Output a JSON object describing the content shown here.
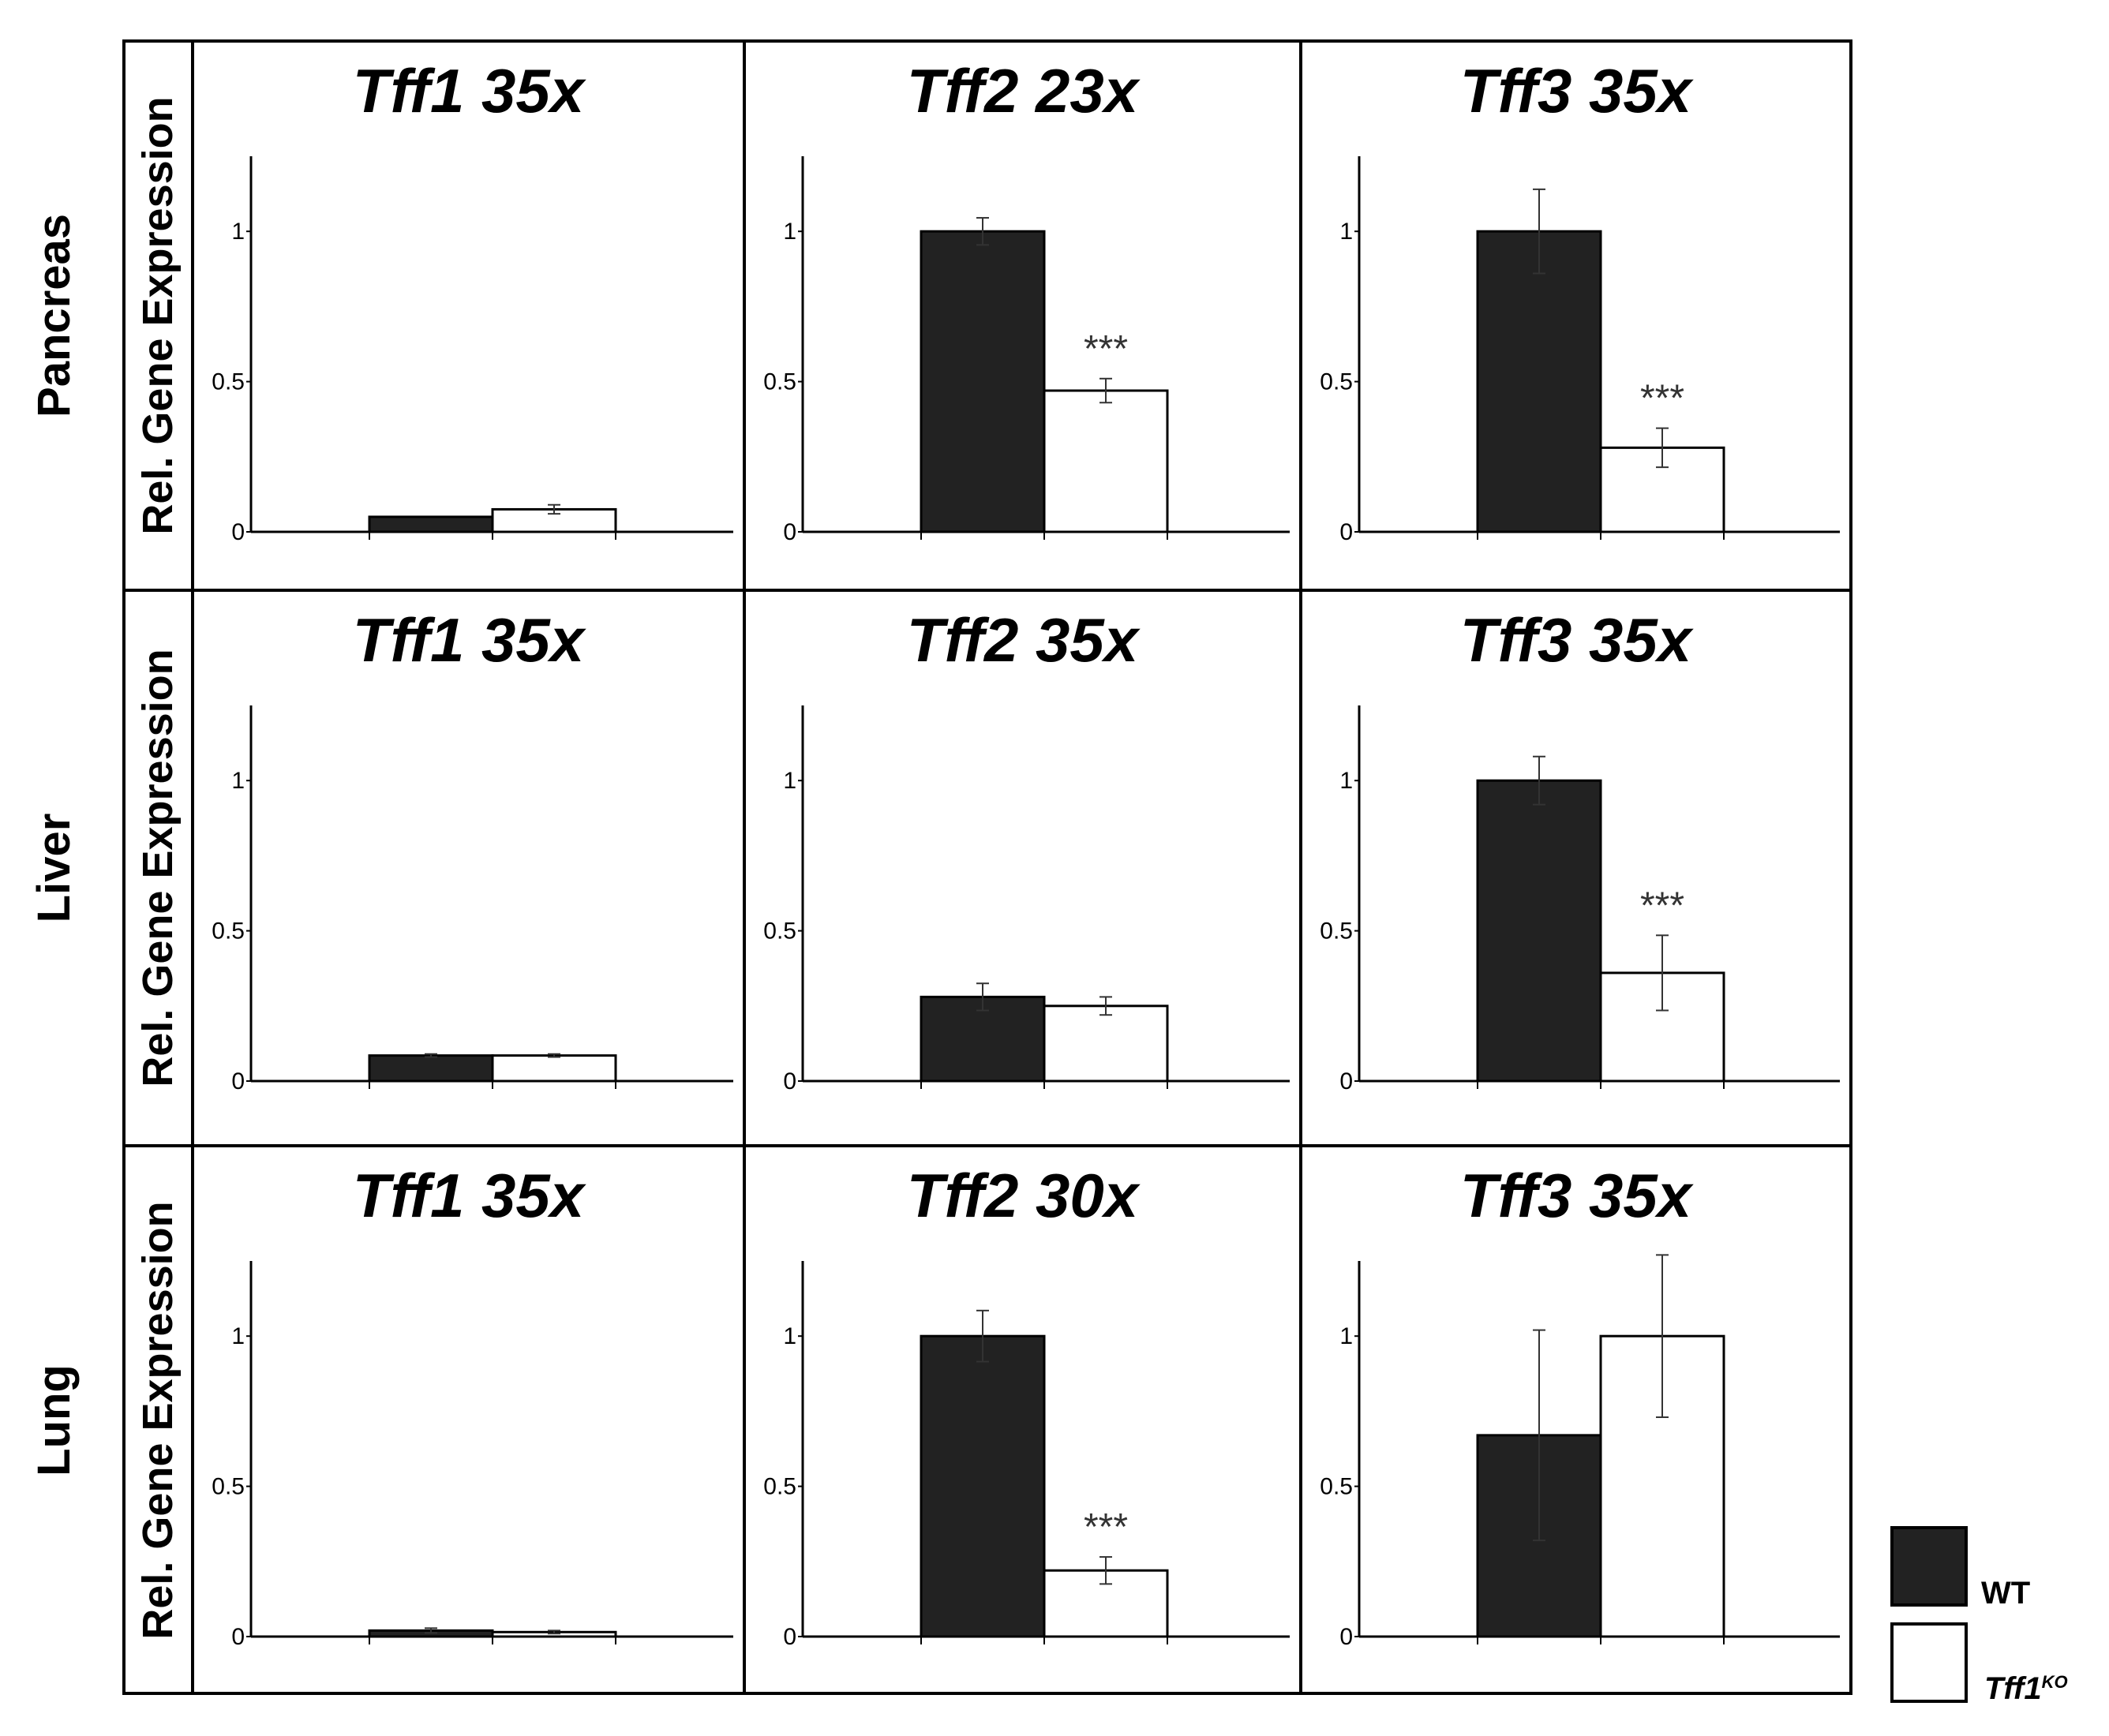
{
  "colors": {
    "wt": "#222222",
    "ko": "#ffffff",
    "axis": "#000000",
    "errorbar": "#333333"
  },
  "rows": [
    {
      "label": "Pancreas"
    },
    {
      "label": "Liver"
    },
    {
      "label": "Lung"
    }
  ],
  "y_axis_label": "Rel. Gene Expression",
  "legend": {
    "wt_label": "WT",
    "ko_label": "Tff1",
    "ko_superscript": "KO"
  },
  "chart_data": [
    {
      "type": "bar",
      "row": "Pancreas",
      "title": "Tff1 35x",
      "categories": [
        "WT",
        "Tff1KO"
      ],
      "series": [
        {
          "name": "WT",
          "value": 0.05,
          "error": 0.0
        },
        {
          "name": "Tff1KO",
          "value": 0.075,
          "error": 0.015
        }
      ],
      "significance": "",
      "ylim": [
        0,
        1.25
      ],
      "yticks": [
        "0",
        "0.5",
        "1"
      ]
    },
    {
      "type": "bar",
      "row": "Pancreas",
      "title": "Tff2 23x",
      "categories": [
        "WT",
        "Tff1KO"
      ],
      "series": [
        {
          "name": "WT",
          "value": 1.0,
          "error": 0.045
        },
        {
          "name": "Tff1KO",
          "value": 0.47,
          "error": 0.04
        }
      ],
      "significance": "***",
      "ylim": [
        0,
        1.25
      ],
      "yticks": [
        "0",
        "0.5",
        "1"
      ]
    },
    {
      "type": "bar",
      "row": "Pancreas",
      "title": "Tff3 35x",
      "categories": [
        "WT",
        "Tff1KO"
      ],
      "series": [
        {
          "name": "WT",
          "value": 1.0,
          "error": 0.14
        },
        {
          "name": "Tff1KO",
          "value": 0.28,
          "error": 0.065
        }
      ],
      "significance": "***",
      "ylim": [
        0,
        1.25
      ],
      "yticks": [
        "0",
        "0.5",
        "1"
      ]
    },
    {
      "type": "bar",
      "row": "Liver",
      "title": "Tff1 35x",
      "categories": [
        "WT",
        "Tff1KO"
      ],
      "series": [
        {
          "name": "WT",
          "value": 0.085,
          "error": 0.005
        },
        {
          "name": "Tff1KO",
          "value": 0.085,
          "error": 0.005
        }
      ],
      "significance": "",
      "ylim": [
        0,
        1.25
      ],
      "yticks": [
        "0",
        "0.5",
        "1"
      ]
    },
    {
      "type": "bar",
      "row": "Liver",
      "title": "Tff2 35x",
      "categories": [
        "WT",
        "Tff1KO"
      ],
      "series": [
        {
          "name": "WT",
          "value": 0.28,
          "error": 0.045
        },
        {
          "name": "Tff1KO",
          "value": 0.25,
          "error": 0.03
        }
      ],
      "significance": "",
      "ylim": [
        0,
        1.25
      ],
      "yticks": [
        "0",
        "0.5",
        "1"
      ]
    },
    {
      "type": "bar",
      "row": "Liver",
      "title": "Tff3 35x",
      "categories": [
        "WT",
        "Tff1KO"
      ],
      "series": [
        {
          "name": "WT",
          "value": 1.0,
          "error": 0.08
        },
        {
          "name": "Tff1KO",
          "value": 0.36,
          "error": 0.125
        }
      ],
      "significance": "***",
      "ylim": [
        0,
        1.25
      ],
      "yticks": [
        "0",
        "0.5",
        "1"
      ]
    },
    {
      "type": "bar",
      "row": "Lung",
      "title": "Tff1 35x",
      "categories": [
        "WT",
        "Tff1KO"
      ],
      "series": [
        {
          "name": "WT",
          "value": 0.02,
          "error": 0.008
        },
        {
          "name": "Tff1KO",
          "value": 0.015,
          "error": 0.005
        }
      ],
      "significance": "",
      "ylim": [
        0,
        1.25
      ],
      "yticks": [
        "0",
        "0.5",
        "1"
      ]
    },
    {
      "type": "bar",
      "row": "Lung",
      "title": "Tff2 30x",
      "categories": [
        "WT",
        "Tff1KO"
      ],
      "series": [
        {
          "name": "WT",
          "value": 1.0,
          "error": 0.085
        },
        {
          "name": "Tff1KO",
          "value": 0.22,
          "error": 0.045
        }
      ],
      "significance": "***",
      "ylim": [
        0,
        1.25
      ],
      "yticks": [
        "0",
        "0.5",
        "1"
      ]
    },
    {
      "type": "bar",
      "row": "Lung",
      "title": "Tff3 35x",
      "categories": [
        "WT",
        "Tff1KO"
      ],
      "series": [
        {
          "name": "WT",
          "value": 0.67,
          "error": 0.35
        },
        {
          "name": "Tff1KO",
          "value": 1.0,
          "error": 0.27
        }
      ],
      "significance": "",
      "ylim": [
        0,
        1.25
      ],
      "yticks": [
        "0",
        "0.5",
        "1"
      ]
    }
  ]
}
